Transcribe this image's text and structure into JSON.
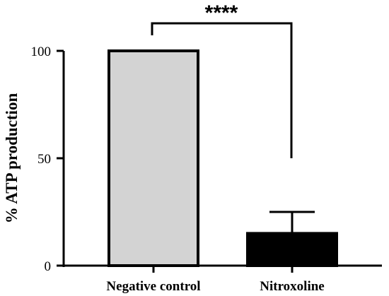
{
  "chart_data": {
    "type": "bar",
    "categories": [
      "Negative control",
      "Nitroxoline"
    ],
    "values": [
      100,
      15
    ],
    "error_bars": [
      0,
      10
    ],
    "ylabel": "% ATP production",
    "xlabel": "",
    "ylim": [
      0,
      100
    ],
    "yticks": [
      "0",
      "50",
      "100"
    ],
    "significance": {
      "label": "****",
      "between": [
        "Negative control",
        "Nitroxoline"
      ]
    },
    "colors": {
      "bars": [
        "#d3d3d3",
        "#000000"
      ],
      "stroke": "#000000"
    },
    "grid": false
  }
}
